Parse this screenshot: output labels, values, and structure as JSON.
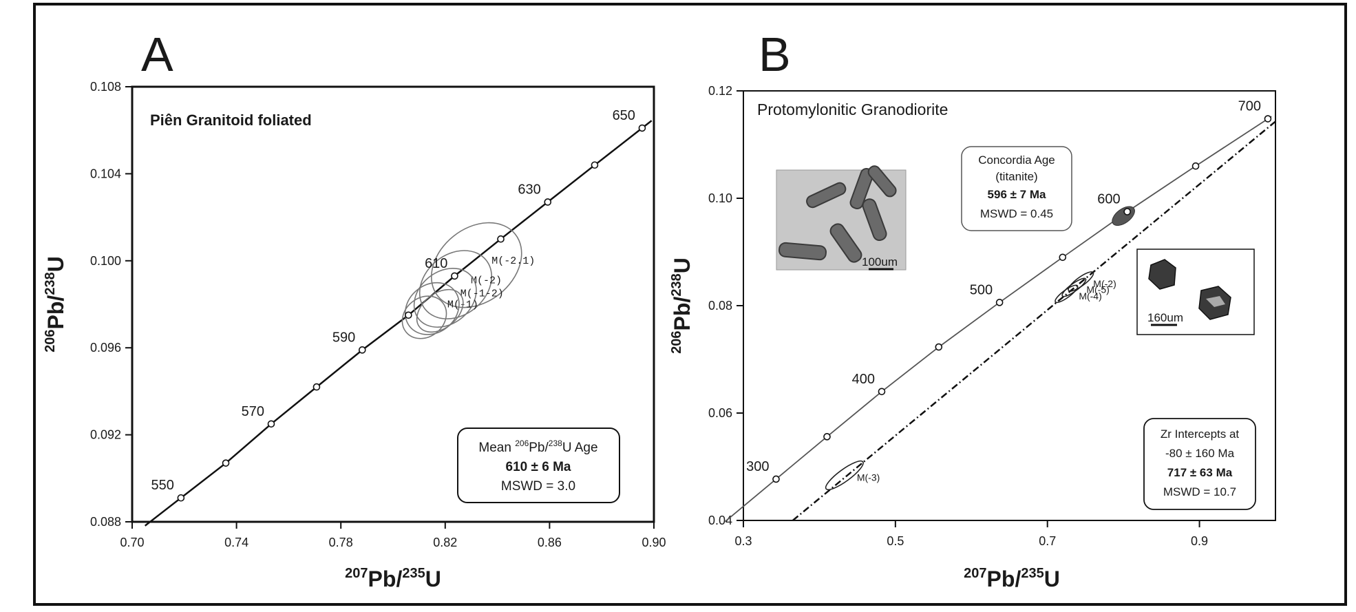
{
  "chart_data": [
    {
      "type": "scatter",
      "panel_label": "A",
      "title": "Piên Granitoid foliated",
      "xlabel": {
        "mass": "207",
        "element1": "Pb",
        "slash": "/",
        "mass2": "235",
        "element2": "U"
      },
      "ylabel": {
        "mass": "206",
        "element1": "Pb",
        "slash": "/",
        "mass2": "238",
        "element2": "U"
      },
      "xlim": [
        0.7,
        0.9
      ],
      "ylim": [
        0.088,
        0.108
      ],
      "xticks": [
        "0.70",
        "0.74",
        "0.78",
        "0.82",
        "0.86",
        "0.90"
      ],
      "yticks": [
        "0.088",
        "0.092",
        "0.096",
        "0.100",
        "0.104",
        "0.108"
      ],
      "grid": false,
      "concordia": {
        "points": [
          {
            "age": "550",
            "x": 0.7187,
            "y": 0.0891
          },
          {
            "age": "",
            "x": 0.7359,
            "y": 0.0907
          },
          {
            "age": "570",
            "x": 0.7533,
            "y": 0.0925
          },
          {
            "age": "",
            "x": 0.7707,
            "y": 0.0942
          },
          {
            "age": "590",
            "x": 0.7882,
            "y": 0.0959
          },
          {
            "age": "",
            "x": 0.8059,
            "y": 0.0975
          },
          {
            "age": "610",
            "x": 0.8236,
            "y": 0.0993
          },
          {
            "age": "",
            "x": 0.8413,
            "y": 0.101
          },
          {
            "age": "630",
            "x": 0.8593,
            "y": 0.1027
          },
          {
            "age": "",
            "x": 0.8773,
            "y": 0.1044
          },
          {
            "age": "650",
            "x": 0.8955,
            "y": 0.1061
          }
        ]
      },
      "ellipses": [
        {
          "label": "M(-2.1)",
          "cx": 0.832,
          "cy": 0.0998,
          "rx": 0.019,
          "ry": 0.0017
        },
        {
          "label": "M(-2)",
          "cx": 0.824,
          "cy": 0.0989,
          "rx": 0.015,
          "ry": 0.0014
        },
        {
          "label": "M(-1-2)",
          "cx": 0.82,
          "cy": 0.0983,
          "rx": 0.013,
          "ry": 0.0012
        },
        {
          "label": "M(-1)",
          "cx": 0.815,
          "cy": 0.0978,
          "rx": 0.011,
          "ry": 0.0011
        },
        {
          "label": "",
          "cx": 0.812,
          "cy": 0.0974,
          "rx": 0.009,
          "ry": 0.0009
        },
        {
          "label": "",
          "cx": 0.818,
          "cy": 0.0977,
          "rx": 0.01,
          "ry": 0.0008
        }
      ],
      "annotation": {
        "line1_prefix": "Mean ",
        "line1_sup1": "206",
        "line1_mid": "Pb/",
        "line1_sup2": "238",
        "line1_suffix": "U  Age",
        "line2": "610 ± 6  Ma",
        "line3": "MSWD = 3.0"
      }
    },
    {
      "type": "scatter",
      "panel_label": "B",
      "title": "Protomylonitic Granodiorite",
      "xlabel": {
        "mass": "207",
        "element1": "Pb",
        "slash": "/",
        "mass2": "235",
        "element2": "U"
      },
      "ylabel": {
        "mass": "206",
        "element1": "Pb",
        "slash": "/",
        "mass2": "238",
        "element2": "U"
      },
      "xlim": [
        0.3,
        1.0
      ],
      "ylim": [
        0.04,
        0.12
      ],
      "xticks": [
        "0.3",
        "0.5",
        "0.7",
        "0.9"
      ],
      "yticks": [
        "0.04",
        "0.06",
        "0.08",
        "0.10",
        "0.12"
      ],
      "grid": false,
      "concordia": {
        "points": [
          {
            "age": "300",
            "x": 0.343,
            "y": 0.0477
          },
          {
            "age": "",
            "x": 0.41,
            "y": 0.0556
          },
          {
            "age": "400",
            "x": 0.482,
            "y": 0.064
          },
          {
            "age": "",
            "x": 0.557,
            "y": 0.0723
          },
          {
            "age": "500",
            "x": 0.637,
            "y": 0.0806
          },
          {
            "age": "",
            "x": 0.72,
            "y": 0.089
          },
          {
            "age": "600",
            "x": 0.805,
            "y": 0.0975
          },
          {
            "age": "",
            "x": 0.895,
            "y": 0.106
          },
          {
            "age": "700",
            "x": 0.99,
            "y": 0.1148
          }
        ]
      },
      "discordia_line": {
        "x": [
          0.365,
          1.0
        ],
        "y": [
          0.04,
          0.1143
        ]
      },
      "ellipses": [
        {
          "label": "M(-3)",
          "cx": 0.433,
          "cy": 0.0484,
          "rx": 0.03,
          "ry": 0.0011
        },
        {
          "label": "M(-2)",
          "cx": 0.744,
          "cy": 0.0845,
          "rx": 0.02,
          "ry": 0.0008
        },
        {
          "label": "M(-5)",
          "cx": 0.735,
          "cy": 0.0834,
          "rx": 0.019,
          "ry": 0.0007
        },
        {
          "label": "M(-4)",
          "cx": 0.725,
          "cy": 0.0822,
          "rx": 0.018,
          "ry": 0.0007
        }
      ],
      "titanite_ellipse": {
        "cx": 0.8,
        "cy": 0.0967,
        "rx": 0.017,
        "ry": 0.0013
      },
      "concordia_box": {
        "line1": "Concordia Age",
        "line2": "(titanite)",
        "line3": "596 ± 7 Ma",
        "line4": "MSWD = 0.45"
      },
      "intercept_box": {
        "line1": "Zr Intercepts at",
        "line2": "-80 ± 160 Ma",
        "line3": "717 ± 63 Ma",
        "line4": "MSWD = 10.7"
      },
      "inset_titanite": {
        "scale_label": "100um"
      },
      "inset_zircon": {
        "scale_label": "160um"
      }
    }
  ]
}
